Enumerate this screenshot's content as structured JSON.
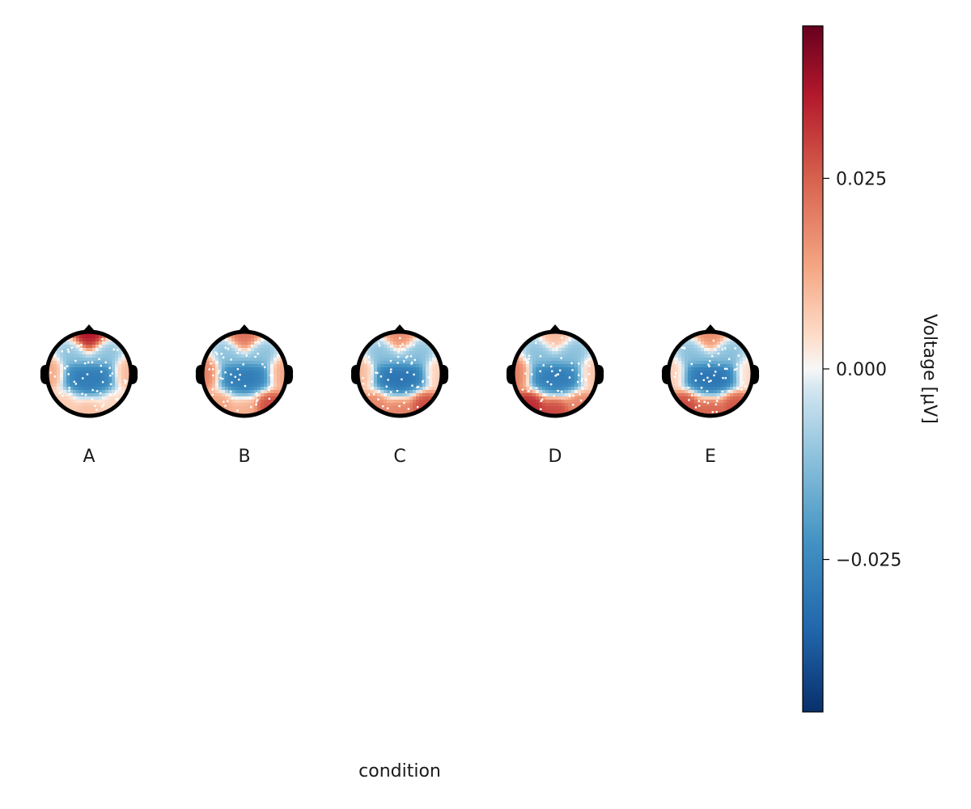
{
  "chart_data": {
    "type": "heatmap",
    "subtype": "topoplot-series",
    "xlabel": "condition",
    "categories": [
      "A",
      "B",
      "C",
      "D",
      "E"
    ],
    "colorbar": {
      "label": "Voltage [μV]",
      "colormap": "RdBu (reversed)",
      "range": [
        -0.045,
        0.045
      ],
      "ticks": [
        -0.025,
        0.0,
        0.025
      ],
      "tick_labels": [
        "−0.025",
        "0.000",
        "0.025"
      ],
      "colors": {
        "low": "#08306b",
        "mid": "#f7f7f7",
        "high": "#67001f"
      }
    },
    "panels": [
      {
        "label": "A",
        "frontal": 0.04,
        "left_temporal": 0.015,
        "right_temporal": 0.012,
        "central": -0.03,
        "occipital": 0.01,
        "left_occipital": 0.008,
        "right_occipital": 0.006
      },
      {
        "label": "B",
        "frontal": 0.025,
        "left_temporal": 0.022,
        "right_temporal": 0.015,
        "central": -0.03,
        "occipital": 0.012,
        "left_occipital": 0.015,
        "right_occipital": 0.03
      },
      {
        "label": "C",
        "frontal": 0.02,
        "left_temporal": 0.012,
        "right_temporal": 0.008,
        "central": -0.032,
        "occipital": 0.02,
        "left_occipital": 0.02,
        "right_occipital": 0.03
      },
      {
        "label": "D",
        "frontal": 0.012,
        "left_temporal": 0.022,
        "right_temporal": 0.01,
        "central": -0.03,
        "occipital": 0.03,
        "left_occipital": 0.035,
        "right_occipital": 0.02
      },
      {
        "label": "E",
        "frontal": 0.02,
        "left_temporal": 0.008,
        "right_temporal": 0.006,
        "central": -0.032,
        "occipital": 0.025,
        "left_occipital": 0.03,
        "right_occipital": 0.028
      }
    ]
  }
}
